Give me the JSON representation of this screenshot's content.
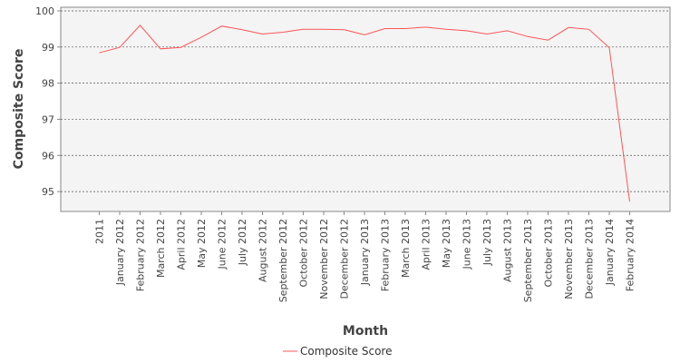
{
  "chart_data": {
    "type": "line",
    "categories": [
      "2011",
      "January 2012",
      "February 2012",
      "March 2012",
      "April 2012",
      "May 2012",
      "June 2012",
      "July 2012",
      "August 2012",
      "September 2012",
      "October 2012",
      "November 2012",
      "December 2012",
      "January 2013",
      "February 2013",
      "March 2013",
      "April 2013",
      "May 2013",
      "June 2013",
      "July 2013",
      "August 2013",
      "September 2013",
      "October 2013",
      "November 2013",
      "December 2013",
      "January 2014",
      "February 2014"
    ],
    "series": [
      {
        "name": "Composite Score",
        "color": "#ff5555",
        "values": [
          98.84,
          98.99,
          99.6,
          98.95,
          98.99,
          99.27,
          99.58,
          99.48,
          99.36,
          99.41,
          99.49,
          99.49,
          99.48,
          99.34,
          99.51,
          99.51,
          99.55,
          99.49,
          99.45,
          99.36,
          99.45,
          99.29,
          99.19,
          99.54,
          99.49,
          98.98,
          94.72
        ]
      }
    ],
    "xlabel": "Month",
    "ylabel": "Composite Score",
    "ylim": [
      94.45,
      100.1
    ],
    "yticks": [
      95,
      96,
      97,
      98,
      99,
      100
    ],
    "grid": "horizontal-dashed",
    "legend_position": "bottom"
  }
}
